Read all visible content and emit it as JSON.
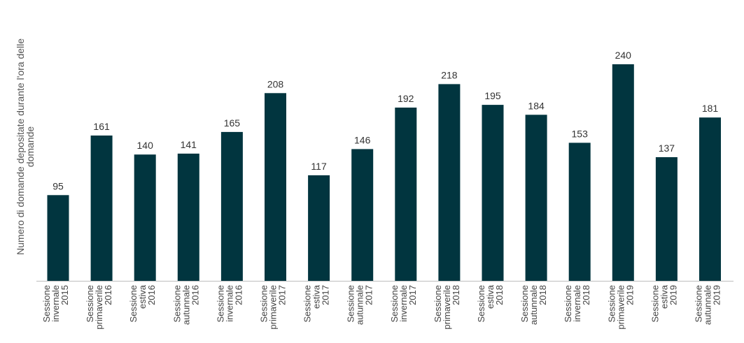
{
  "chart_data": {
    "type": "bar",
    "title": "",
    "xlabel": "",
    "ylabel_lines": [
      "Numero di domande depositate durante l'ora delle",
      "domande"
    ],
    "ylim": [
      0,
      240
    ],
    "grid": false,
    "legend": "none",
    "bar_color": "#01353f",
    "categories": [
      [
        "Sessione",
        "invernale",
        "2015"
      ],
      [
        "Sessione",
        "primaverile",
        "2016"
      ],
      [
        "Sessione",
        "estiva",
        "2016"
      ],
      [
        "Sessione",
        "autunnale",
        "2016"
      ],
      [
        "Sessione",
        "invernale",
        "2016"
      ],
      [
        "Sessione",
        "primaverile",
        "2017"
      ],
      [
        "Sessione",
        "estiva",
        "2017"
      ],
      [
        "Sessione",
        "autunnale",
        "2017"
      ],
      [
        "Sessione",
        "invernale",
        "2017"
      ],
      [
        "Sessione",
        "primaverile",
        "2018"
      ],
      [
        "Sessione",
        "estiva",
        "2018"
      ],
      [
        "Sessione",
        "autunnale",
        "2018"
      ],
      [
        "Sessione",
        "invernale",
        "2018"
      ],
      [
        "Sessione",
        "primaverile",
        "2019"
      ],
      [
        "Sessione",
        "estiva",
        "2019"
      ],
      [
        "Sessione",
        "autunnale",
        "2019"
      ]
    ],
    "values": [
      95,
      161,
      140,
      141,
      165,
      208,
      117,
      146,
      192,
      218,
      195,
      184,
      153,
      240,
      137,
      181
    ]
  }
}
